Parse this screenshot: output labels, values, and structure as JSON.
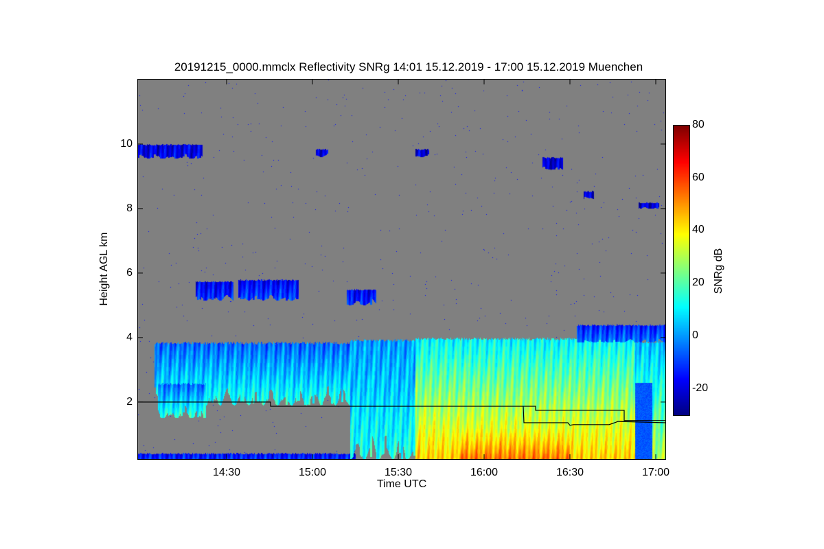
{
  "chart_data": {
    "type": "heatmap",
    "title": "20191215_0000.mmclx Reflectivity SNRg   14:01 15.12.2019 - 17:00 15.12.2019 Muenchen",
    "xlabel": "Time UTC",
    "ylabel": "Height AGL km",
    "xlim_hours": [
      13.98,
      17.06
    ],
    "ylim_km": [
      0.21,
      12.02
    ],
    "x_ticks": [
      {
        "value": 14.5,
        "label": "14:30"
      },
      {
        "value": 15.0,
        "label": "15:00"
      },
      {
        "value": 15.5,
        "label": "15:30"
      },
      {
        "value": 16.0,
        "label": "16:00"
      },
      {
        "value": 16.5,
        "label": "16:30"
      },
      {
        "value": 17.0,
        "label": "17:00"
      }
    ],
    "y_ticks": [
      {
        "value": 2,
        "label": "2"
      },
      {
        "value": 4,
        "label": "4"
      },
      {
        "value": 6,
        "label": "6"
      },
      {
        "value": 8,
        "label": "8"
      },
      {
        "value": 10,
        "label": "10"
      }
    ],
    "colorbar": {
      "label": "SNRg dB",
      "colormap": "jet",
      "range": [
        -30,
        80
      ],
      "ticks": [
        {
          "value": -20,
          "label": "-20"
        },
        {
          "value": 0,
          "label": "0"
        },
        {
          "value": 20,
          "label": "20"
        },
        {
          "value": 40,
          "label": "40"
        },
        {
          "value": 60,
          "label": "60"
        },
        {
          "value": 80,
          "label": "80"
        }
      ]
    },
    "background_color": "#808080",
    "echo_regions": [
      {
        "name": "ground-clutter",
        "t": [
          13.98,
          15.25
        ],
        "z": [
          0.21,
          0.42
        ],
        "snr_bottom": -12,
        "snr_top": -16,
        "ragged": 0
      },
      {
        "name": "cirrus-upper-left",
        "t": [
          13.98,
          14.36
        ],
        "z": [
          9.55,
          10.0
        ],
        "snr_bottom": -18,
        "snr_top": -20,
        "ragged": 0.15
      },
      {
        "name": "cirrus-patch-1",
        "t": [
          15.02,
          15.09
        ],
        "z": [
          9.6,
          9.85
        ],
        "snr_bottom": -18,
        "snr_top": -20,
        "ragged": 0.1
      },
      {
        "name": "cirrus-patch-2",
        "t": [
          15.6,
          15.68
        ],
        "z": [
          9.6,
          9.85
        ],
        "snr_bottom": -20,
        "snr_top": -22,
        "ragged": 0.1
      },
      {
        "name": "cirrus-patch-3",
        "t": [
          16.34,
          16.46
        ],
        "z": [
          9.2,
          9.6
        ],
        "snr_bottom": -20,
        "snr_top": -22,
        "ragged": 0.1
      },
      {
        "name": "cirrus-patch-4",
        "t": [
          16.58,
          16.64
        ],
        "z": [
          8.3,
          8.55
        ],
        "snr_bottom": -20,
        "snr_top": -22,
        "ragged": 0.1
      },
      {
        "name": "cirrus-patch-5",
        "t": [
          16.9,
          17.02
        ],
        "z": [
          8.0,
          8.2
        ],
        "snr_bottom": -20,
        "snr_top": -22,
        "ragged": 0.05
      },
      {
        "name": "midlevel-1",
        "t": [
          14.32,
          14.54
        ],
        "z": [
          5.15,
          5.75
        ],
        "snr_bottom": -12,
        "snr_top": -18,
        "ragged": 0.2
      },
      {
        "name": "midlevel-2",
        "t": [
          14.57,
          14.92
        ],
        "z": [
          5.15,
          5.8
        ],
        "snr_bottom": -8,
        "snr_top": -18,
        "ragged": 0.2
      },
      {
        "name": "midlevel-3",
        "t": [
          15.2,
          15.37
        ],
        "z": [
          5.0,
          5.5
        ],
        "snr_bottom": -12,
        "snr_top": -18,
        "ragged": 0.2
      },
      {
        "name": "stratiform-layer-1",
        "t": [
          14.08,
          15.22
        ],
        "z": [
          1.9,
          3.87
        ],
        "snr_bottom": 14,
        "snr_top": -6,
        "ragged": 0.6
      },
      {
        "name": "lower-fragment",
        "t": [
          14.1,
          14.38
        ],
        "z": [
          1.5,
          2.6
        ],
        "snr_bottom": 16,
        "snr_top": -6,
        "ragged": 0.4
      },
      {
        "name": "precipitation-onset",
        "t": [
          15.22,
          15.6
        ],
        "z": [
          0.21,
          3.95
        ],
        "snr_bottom": 14,
        "snr_top": 0,
        "ragged": 0.8
      },
      {
        "name": "precipitation-main",
        "t": [
          15.6,
          16.88
        ],
        "z": [
          0.21,
          4.0
        ],
        "snr_bottom": 44,
        "snr_top": 10,
        "ragged": 0
      },
      {
        "name": "precipitation-late",
        "t": [
          16.88,
          17.06
        ],
        "z": [
          0.21,
          3.9
        ],
        "snr_bottom": 30,
        "snr_top": 4,
        "ragged": 0
      },
      {
        "name": "upper-band",
        "t": [
          16.54,
          17.06
        ],
        "z": [
          3.85,
          4.4
        ],
        "snr_bottom": -4,
        "snr_top": -14,
        "ragged": 0.1
      }
    ],
    "lines": [
      {
        "name": "line-upper",
        "points": [
          [
            13.98,
            2.0
          ],
          [
            14.756,
            2.0
          ],
          [
            14.756,
            1.87
          ],
          [
            16.3,
            1.87
          ],
          [
            16.3,
            1.745
          ],
          [
            16.816,
            1.745
          ],
          [
            16.816,
            1.43
          ],
          [
            17.06,
            1.43
          ]
        ]
      },
      {
        "name": "line-lower",
        "points": [
          [
            16.228,
            1.87
          ],
          [
            16.232,
            1.36
          ],
          [
            16.488,
            1.36
          ],
          [
            16.5,
            1.28
          ],
          [
            16.52,
            1.3
          ],
          [
            16.728,
            1.3
          ],
          [
            16.76,
            1.36
          ],
          [
            16.78,
            1.4
          ],
          [
            17.06,
            1.36
          ]
        ]
      }
    ]
  }
}
